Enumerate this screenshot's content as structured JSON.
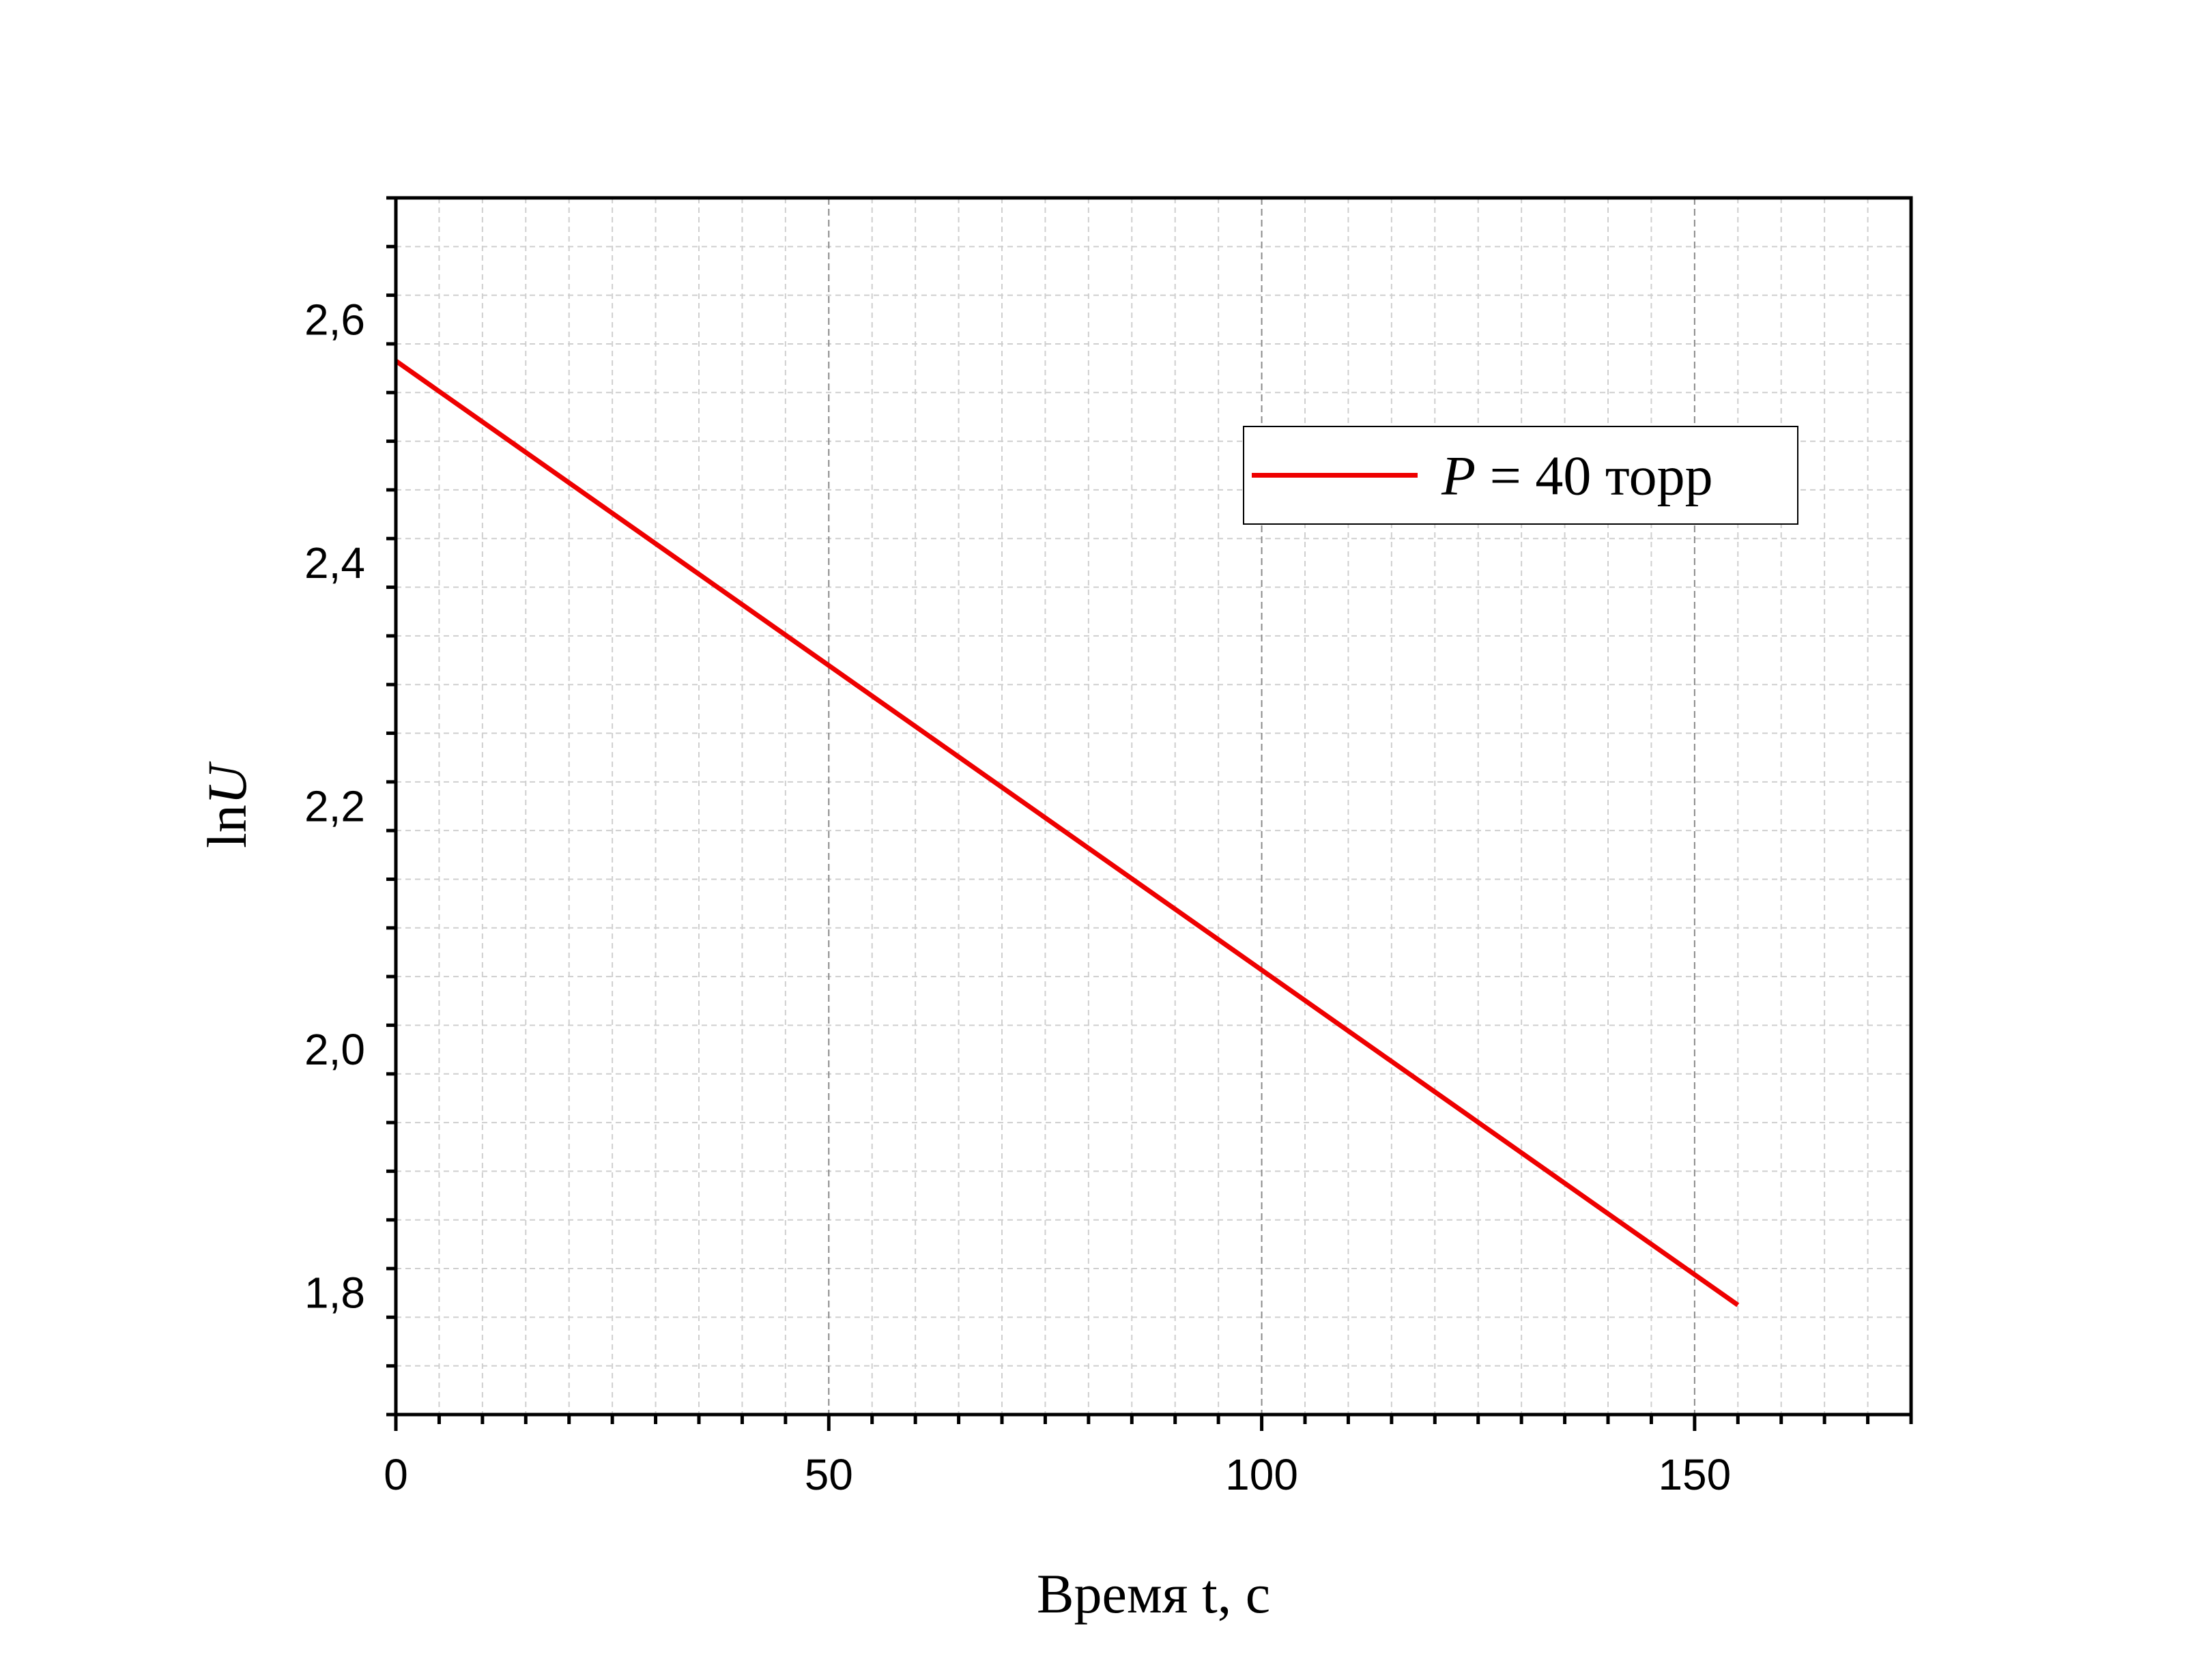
{
  "chart_data": {
    "type": "line",
    "xlabel": "Время t, с",
    "ylabel_prefix": "ln",
    "ylabel_var": "U",
    "xlim": [
      0,
      175
    ],
    "ylim": [
      1.7,
      2.7
    ],
    "x_major_ticks": [
      0,
      50,
      100,
      150
    ],
    "x_tick_labels": [
      "0",
      "50",
      "100",
      "150"
    ],
    "x_minor_step": 5,
    "y_major_ticks": [
      1.8,
      2.0,
      2.2,
      2.4,
      2.6
    ],
    "y_tick_labels": [
      "1,8",
      "2,0",
      "2,2",
      "2,4",
      "2,6"
    ],
    "y_minor_step": 0.04,
    "grid": true,
    "legend_position": "top-right",
    "series": [
      {
        "name_var": "P",
        "name_rest": " = 40 торр",
        "color": "#ee0000",
        "x": [
          0,
          155
        ],
        "y": [
          2.566,
          1.79
        ]
      }
    ]
  }
}
